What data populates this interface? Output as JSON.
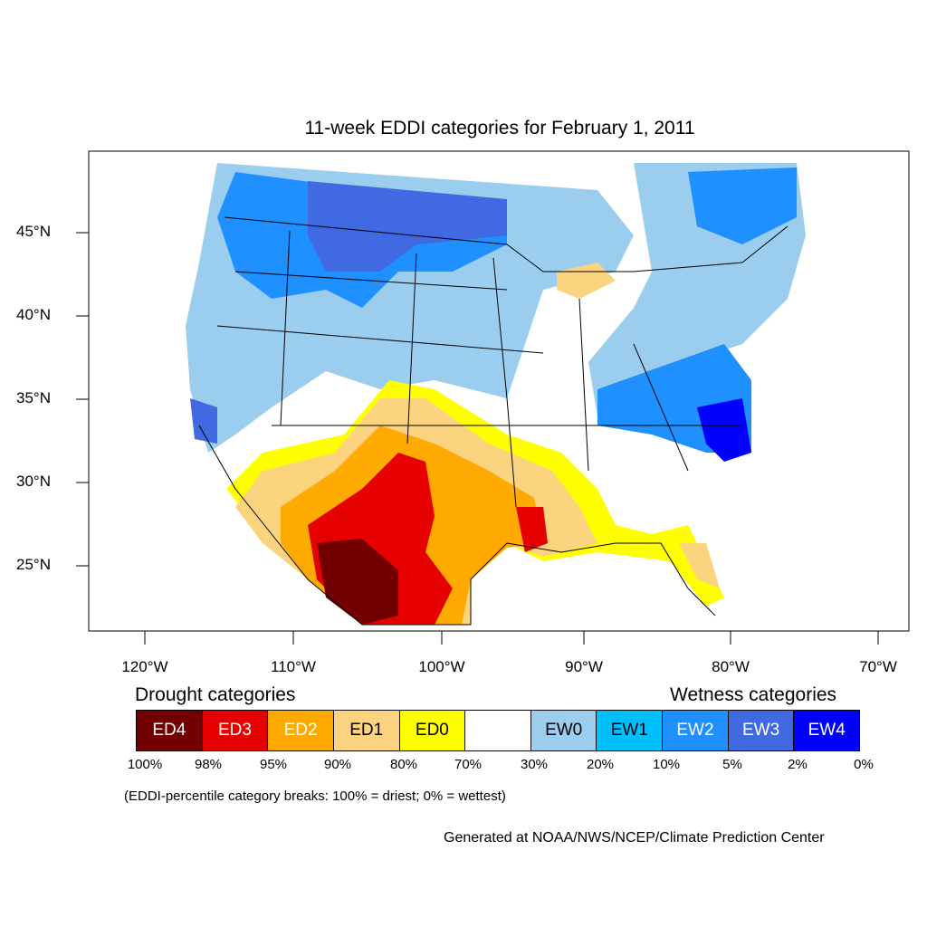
{
  "title": "11-week EDDI categories for February 1, 2011",
  "lat_labels": [
    "45°N",
    "40°N",
    "35°N",
    "30°N",
    "25°N"
  ],
  "lon_labels": [
    "120°W",
    "110°W",
    "100°W",
    "90°W",
    "80°W",
    "70°W"
  ],
  "drought_title": "Drought categories",
  "wetness_title": "Wetness categories",
  "legend": [
    {
      "label": "ED4",
      "color": "#730000",
      "text_color": "#ffffff"
    },
    {
      "label": "ED3",
      "color": "#e60000",
      "text_color": "#ffffff"
    },
    {
      "label": "ED2",
      "color": "#ffaa00",
      "text_color": "#ffffff"
    },
    {
      "label": "ED1",
      "color": "#fcd37f",
      "text_color": "#000000"
    },
    {
      "label": "ED0",
      "color": "#ffff00",
      "text_color": "#000000"
    },
    {
      "label": "",
      "color": "#ffffff",
      "text_color": "#000000"
    },
    {
      "label": "EW0",
      "color": "#9bcdef",
      "text_color": "#000000"
    },
    {
      "label": "EW1",
      "color": "#00bfff",
      "text_color": "#000000"
    },
    {
      "label": "EW2",
      "color": "#1e90ff",
      "text_color": "#ffffff"
    },
    {
      "label": "EW3",
      "color": "#4169e1",
      "text_color": "#ffffff"
    },
    {
      "label": "EW4",
      "color": "#0000ff",
      "text_color": "#ffffff"
    }
  ],
  "breaks": [
    "100%",
    "98%",
    "95%",
    "90%",
    "80%",
    "70%",
    "30%",
    "20%",
    "10%",
    "5%",
    "2%",
    "0%"
  ],
  "note": "(EDDI-percentile category breaks: 100% = driest; 0% = wettest)",
  "credit": "Generated at NOAA/NWS/NCEP/Climate Prediction Center"
}
